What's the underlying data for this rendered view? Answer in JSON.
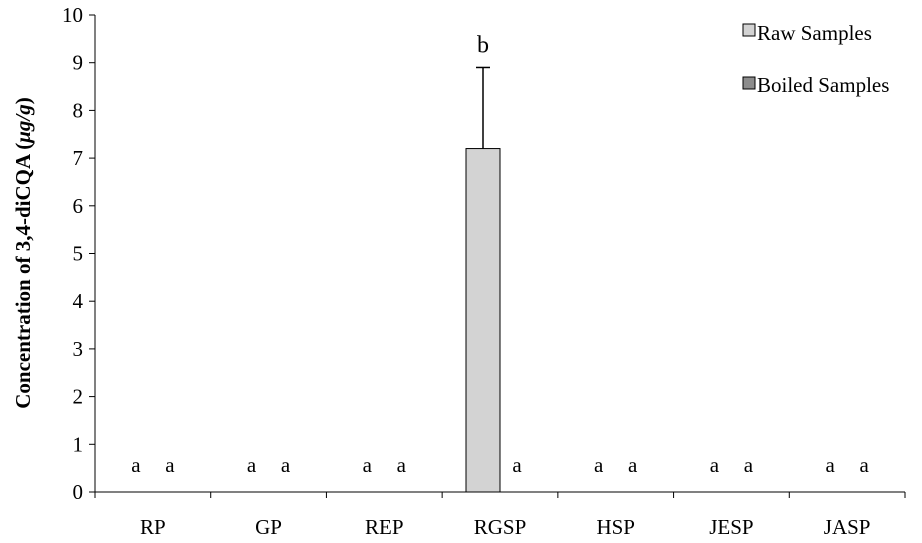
{
  "chart_data": {
    "type": "bar",
    "title": "",
    "xlabel": "",
    "ylabel_prefix": "Concentration of 3,4-diCQA (",
    "ylabel_unit": "μg/g",
    "ylabel_suffix": ")",
    "ylim": [
      0,
      10
    ],
    "yticks": [
      "0",
      "1",
      "2",
      "3",
      "4",
      "5",
      "6",
      "7",
      "8",
      "9",
      "10"
    ],
    "categories": [
      "RP",
      "GP",
      "REP",
      "RGSP",
      "HSP",
      "JESP",
      "JASP"
    ],
    "series": [
      {
        "name": "Raw Samples",
        "color": "#d3d3d3",
        "values": [
          0,
          0,
          0,
          7.2,
          0,
          0,
          0
        ],
        "error": [
          0,
          0,
          0,
          1.7,
          0,
          0,
          0
        ],
        "letters": [
          "a",
          "a",
          "a",
          "b",
          "a",
          "a",
          "a"
        ]
      },
      {
        "name": "Boiled Samples",
        "color": "#8c8c8c",
        "values": [
          0,
          0,
          0,
          0,
          0,
          0,
          0
        ],
        "error": [
          0,
          0,
          0,
          0,
          0,
          0,
          0
        ],
        "letters": [
          "a",
          "a",
          "a",
          "a",
          "a",
          "a",
          "a"
        ]
      }
    ],
    "legend_position": "top-right",
    "grid": false
  }
}
